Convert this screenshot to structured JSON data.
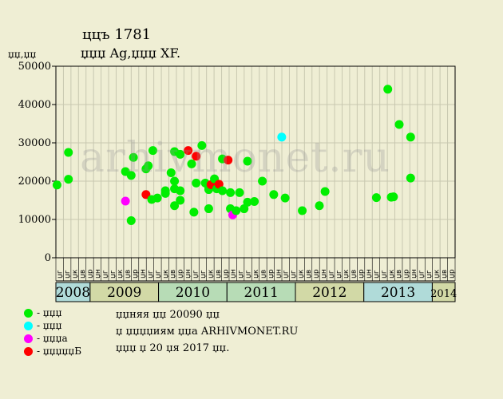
{
  "header": {
    "title": "ццъ 1781",
    "subtitle": "џџџ Ag,џџџ XF.",
    "y_unit": "џџ,џџ"
  },
  "watermark": "arhivmonet.ru",
  "legend": [
    {
      "label": "- џџџ",
      "color": "#00ee00",
      "icon": "green-dot"
    },
    {
      "label": "- џџџ",
      "color": "#00ffff",
      "icon": "cyan-dot"
    },
    {
      "label": "- џџџа",
      "color": "#ff00ff",
      "icon": "magenta-dot"
    },
    {
      "label": "- џџџџџБ",
      "color": "#ff0000",
      "icon": "red-dot"
    }
  ],
  "notes": [
    "џџняя џџ 20090 џџ",
    "џ џџџџиям џџа ARHIVMONET.RU",
    "џџџ џ 20 џя 2017 џџ."
  ],
  "chart_data": {
    "type": "scatter",
    "ylim": [
      0,
      50000
    ],
    "yticks": [
      "0",
      "10000",
      "20000",
      "30000",
      "40000",
      "50000"
    ],
    "grid": true,
    "month_labels": [
      "џг",
      "џг",
      "џк",
      "џв",
      "џр",
      "џн",
      "џг",
      "џг",
      "џк",
      "џв",
      "џр",
      "џн",
      "џг",
      "џг",
      "џк",
      "џв",
      "џр",
      "џн",
      "џг",
      "џг",
      "џк",
      "џв",
      "џр",
      "џн",
      "џг",
      "џг",
      "џк",
      "џв",
      "џр",
      "џн",
      "џг",
      "џг",
      "џк",
      "џв",
      "џр",
      "џн",
      "џг",
      "џг",
      "џк",
      "џв",
      "џр",
      "џн",
      "џг",
      "џг",
      "џк",
      "џв",
      "џр",
      "џн",
      "џг",
      "џг",
      "џк",
      "џв",
      "џр"
    ],
    "years": [
      {
        "label": "2008",
        "start": 0,
        "end": 3,
        "color": "#b0dbd9"
      },
      {
        "label": "2009",
        "start": 3,
        "end": 9,
        "color": "#d2d9a6"
      },
      {
        "label": "2010",
        "start": 9,
        "end": 15,
        "color": "#b7dcb6"
      },
      {
        "label": "2011",
        "start": 15,
        "end": 21,
        "color": "#b7dcb6"
      },
      {
        "label": "2012",
        "start": 21,
        "end": 27,
        "color": "#d2d9a6"
      },
      {
        "label": "2013",
        "start": 27,
        "end": 33,
        "color": "#b0dbd9"
      },
      {
        "label": "2014",
        "start": 33,
        "end": 35,
        "color": "#d2d9a6"
      }
    ],
    "points": [
      {
        "x": 0.1,
        "y": 19000,
        "c": "green"
      },
      {
        "x": 1.1,
        "y": 27500,
        "c": "green"
      },
      {
        "x": 1.1,
        "y": 20500,
        "c": "green"
      },
      {
        "x": 6.1,
        "y": 14800,
        "c": "magenta"
      },
      {
        "x": 6.1,
        "y": 22500,
        "c": "green"
      },
      {
        "x": 6.6,
        "y": 21500,
        "c": "green"
      },
      {
        "x": 6.6,
        "y": 9700,
        "c": "green"
      },
      {
        "x": 6.8,
        "y": 26200,
        "c": "green"
      },
      {
        "x": 7.9,
        "y": 23200,
        "c": "green"
      },
      {
        "x": 8.1,
        "y": 24000,
        "c": "green"
      },
      {
        "x": 7.9,
        "y": 16500,
        "c": "red"
      },
      {
        "x": 8.4,
        "y": 15200,
        "c": "green"
      },
      {
        "x": 8.5,
        "y": 28000,
        "c": "green"
      },
      {
        "x": 8.9,
        "y": 15600,
        "c": "green"
      },
      {
        "x": 9.6,
        "y": 16800,
        "c": "green"
      },
      {
        "x": 9.6,
        "y": 17500,
        "c": "green"
      },
      {
        "x": 10.1,
        "y": 22200,
        "c": "green"
      },
      {
        "x": 10.4,
        "y": 18000,
        "c": "green"
      },
      {
        "x": 10.4,
        "y": 20000,
        "c": "green"
      },
      {
        "x": 10.4,
        "y": 13600,
        "c": "green"
      },
      {
        "x": 10.4,
        "y": 27700,
        "c": "green"
      },
      {
        "x": 10.9,
        "y": 17500,
        "c": "green"
      },
      {
        "x": 10.9,
        "y": 15000,
        "c": "green"
      },
      {
        "x": 10.9,
        "y": 27000,
        "c": "green"
      },
      {
        "x": 11.6,
        "y": 28000,
        "c": "red"
      },
      {
        "x": 11.9,
        "y": 24500,
        "c": "green"
      },
      {
        "x": 12.1,
        "y": 11900,
        "c": "green"
      },
      {
        "x": 12.3,
        "y": 19500,
        "c": "green"
      },
      {
        "x": 12.3,
        "y": 26500,
        "c": "red"
      },
      {
        "x": 12.8,
        "y": 29300,
        "c": "green"
      },
      {
        "x": 13.1,
        "y": 19500,
        "c": "green"
      },
      {
        "x": 13.4,
        "y": 18500,
        "c": "green"
      },
      {
        "x": 13.4,
        "y": 17800,
        "c": "green"
      },
      {
        "x": 13.4,
        "y": 12800,
        "c": "green"
      },
      {
        "x": 13.6,
        "y": 19100,
        "c": "red"
      },
      {
        "x": 13.9,
        "y": 20600,
        "c": "green"
      },
      {
        "x": 14.1,
        "y": 18000,
        "c": "green"
      },
      {
        "x": 14.3,
        "y": 19200,
        "c": "red"
      },
      {
        "x": 14.6,
        "y": 25800,
        "c": "green"
      },
      {
        "x": 14.6,
        "y": 17500,
        "c": "green"
      },
      {
        "x": 15.1,
        "y": 25500,
        "c": "red"
      },
      {
        "x": 15.3,
        "y": 17000,
        "c": "green"
      },
      {
        "x": 15.3,
        "y": 12800,
        "c": "green"
      },
      {
        "x": 15.5,
        "y": 11200,
        "c": "magenta"
      },
      {
        "x": 15.8,
        "y": 12300,
        "c": "green"
      },
      {
        "x": 16.1,
        "y": 17000,
        "c": "green"
      },
      {
        "x": 16.5,
        "y": 12800,
        "c": "green"
      },
      {
        "x": 16.8,
        "y": 14500,
        "c": "green"
      },
      {
        "x": 16.8,
        "y": 25200,
        "c": "green"
      },
      {
        "x": 17.4,
        "y": 14700,
        "c": "green"
      },
      {
        "x": 18.1,
        "y": 20000,
        "c": "green"
      },
      {
        "x": 19.1,
        "y": 16500,
        "c": "green"
      },
      {
        "x": 19.8,
        "y": 31500,
        "c": "cyan"
      },
      {
        "x": 20.1,
        "y": 15600,
        "c": "green"
      },
      {
        "x": 21.6,
        "y": 12300,
        "c": "green"
      },
      {
        "x": 23.1,
        "y": 13600,
        "c": "green"
      },
      {
        "x": 23.6,
        "y": 17300,
        "c": "green"
      },
      {
        "x": 28.1,
        "y": 15700,
        "c": "green"
      },
      {
        "x": 29.1,
        "y": 44000,
        "c": "green"
      },
      {
        "x": 29.4,
        "y": 15800,
        "c": "green"
      },
      {
        "x": 29.6,
        "y": 15900,
        "c": "green"
      },
      {
        "x": 30.1,
        "y": 34800,
        "c": "green"
      },
      {
        "x": 31.1,
        "y": 31500,
        "c": "green"
      },
      {
        "x": 31.1,
        "y": 20800,
        "c": "green"
      }
    ],
    "colors": {
      "green": "#00ee00",
      "cyan": "#00ffff",
      "magenta": "#ff00ff",
      "red": "#ff0000"
    }
  }
}
